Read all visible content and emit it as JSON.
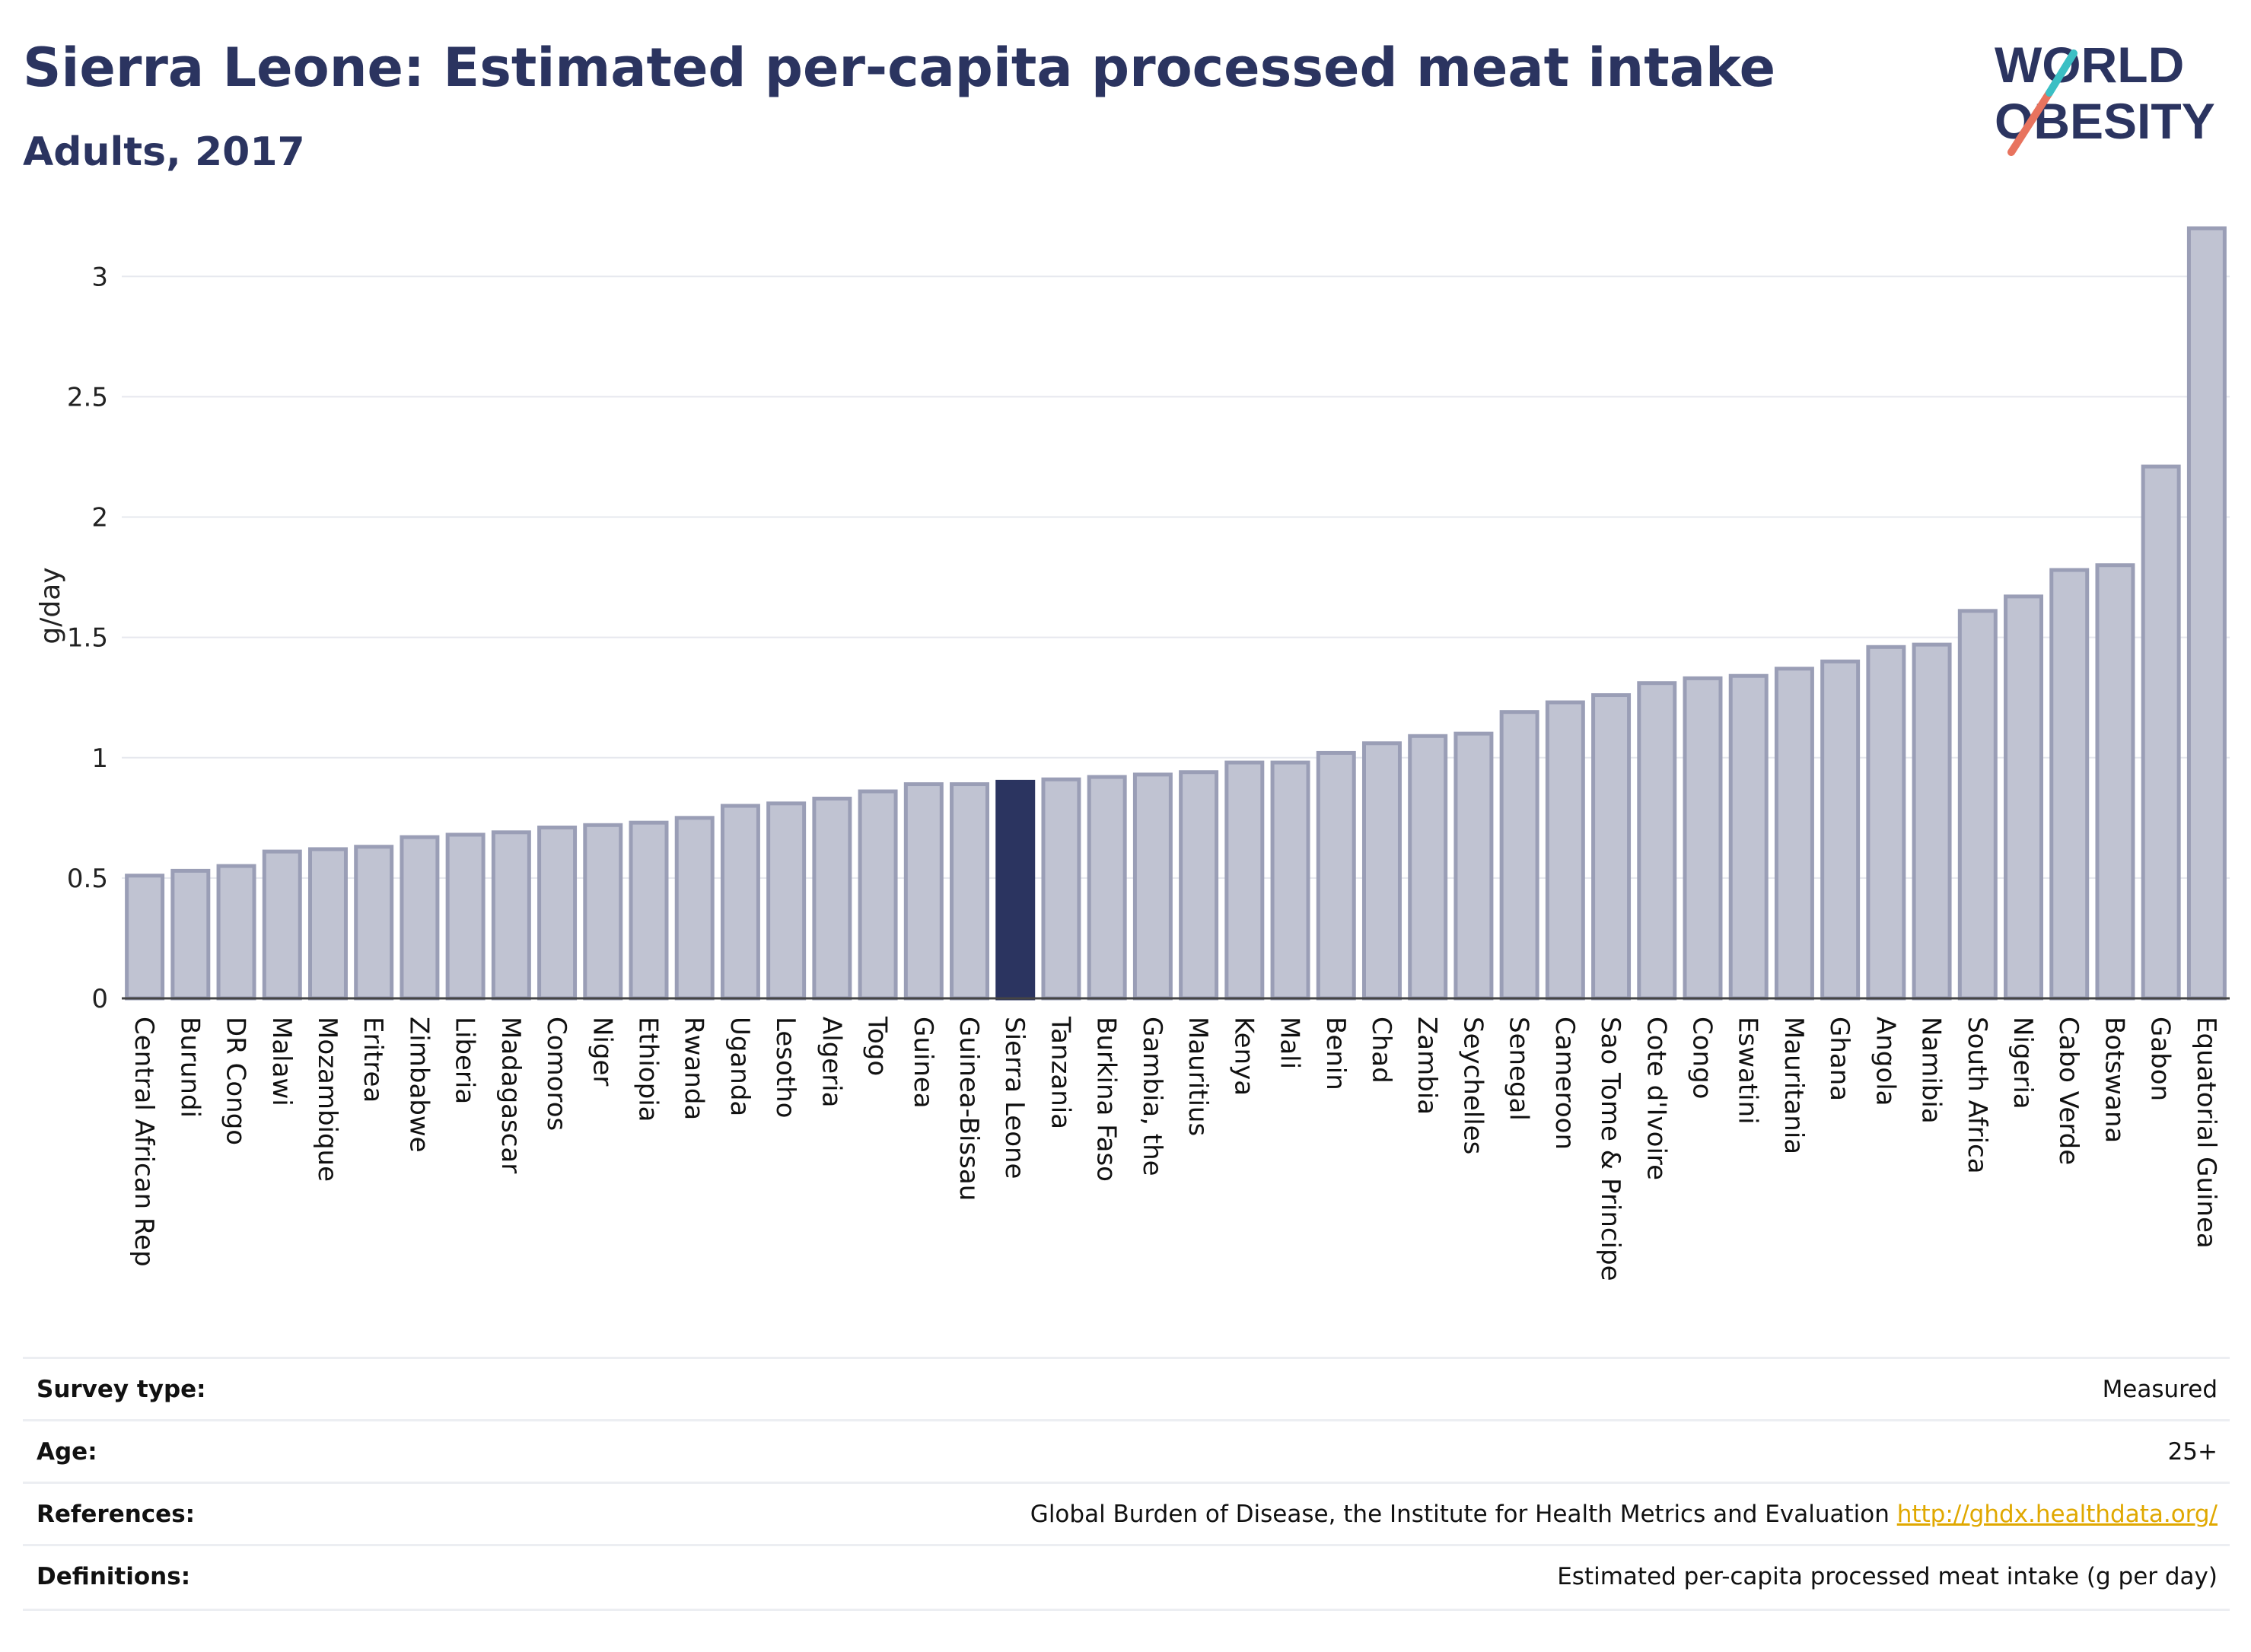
{
  "header": {
    "title": "Sierra Leone: Estimated per-capita processed meat intake",
    "subtitle": "Adults, 2017"
  },
  "logo": {
    "line1": "WORLD",
    "line2": "OBESITY"
  },
  "colors": {
    "bar": "#c0c3d2",
    "bar_stroke": "#9a9eb6",
    "highlight": "#2b3460",
    "text": "#2b3460",
    "grid": "#e6e8ee"
  },
  "chart_data": {
    "type": "bar",
    "ylabel": "g/day",
    "ylim": [
      0,
      3.2
    ],
    "yticks": [
      0,
      0.5,
      1,
      1.5,
      2,
      2.5,
      3
    ],
    "ytick_labels": [
      "0",
      "0.5",
      "1",
      "1.5",
      "2",
      "2.5",
      "3"
    ],
    "highlight": "Sierra Leone",
    "grid": true,
    "categories": [
      "Central African Rep",
      "Burundi",
      "DR Congo",
      "Malawi",
      "Mozambique",
      "Eritrea",
      "Zimbabwe",
      "Liberia",
      "Madagascar",
      "Comoros",
      "Niger",
      "Ethiopia",
      "Rwanda",
      "Uganda",
      "Lesotho",
      "Algeria",
      "Togo",
      "Guinea",
      "Guinea-Bissau",
      "Sierra Leone",
      "Tanzania",
      "Burkina Faso",
      "Gambia, the",
      "Mauritius",
      "Kenya",
      "Mali",
      "Benin",
      "Chad",
      "Zambia",
      "Seychelles",
      "Senegal",
      "Cameroon",
      "Sao Tome & Principe",
      "Cote d'Ivoire",
      "Congo",
      "Eswatini",
      "Mauritania",
      "Ghana",
      "Angola",
      "Namibia",
      "South Africa",
      "Nigeria",
      "Cabo Verde",
      "Botswana",
      "Gabon",
      "Equatorial Guinea"
    ],
    "values": [
      0.51,
      0.53,
      0.55,
      0.61,
      0.62,
      0.63,
      0.67,
      0.68,
      0.69,
      0.71,
      0.72,
      0.73,
      0.75,
      0.8,
      0.81,
      0.83,
      0.86,
      0.89,
      0.89,
      0.9,
      0.91,
      0.92,
      0.93,
      0.94,
      0.98,
      0.98,
      1.02,
      1.06,
      1.09,
      1.1,
      1.19,
      1.23,
      1.26,
      1.31,
      1.33,
      1.34,
      1.37,
      1.4,
      1.46,
      1.47,
      1.61,
      1.67,
      1.78,
      1.8,
      2.21,
      3.2
    ]
  },
  "info": [
    {
      "label": "Survey type:",
      "value": "Measured"
    },
    {
      "label": "Age:",
      "value": "25+"
    },
    {
      "label": "References:",
      "value": "Global Burden of Disease, the Institute for Health Metrics and Evaluation",
      "link": "http://ghdx.healthdata.org/"
    },
    {
      "label": "Definitions:",
      "value": "Estimated per-capita processed meat intake (g per day)"
    }
  ]
}
